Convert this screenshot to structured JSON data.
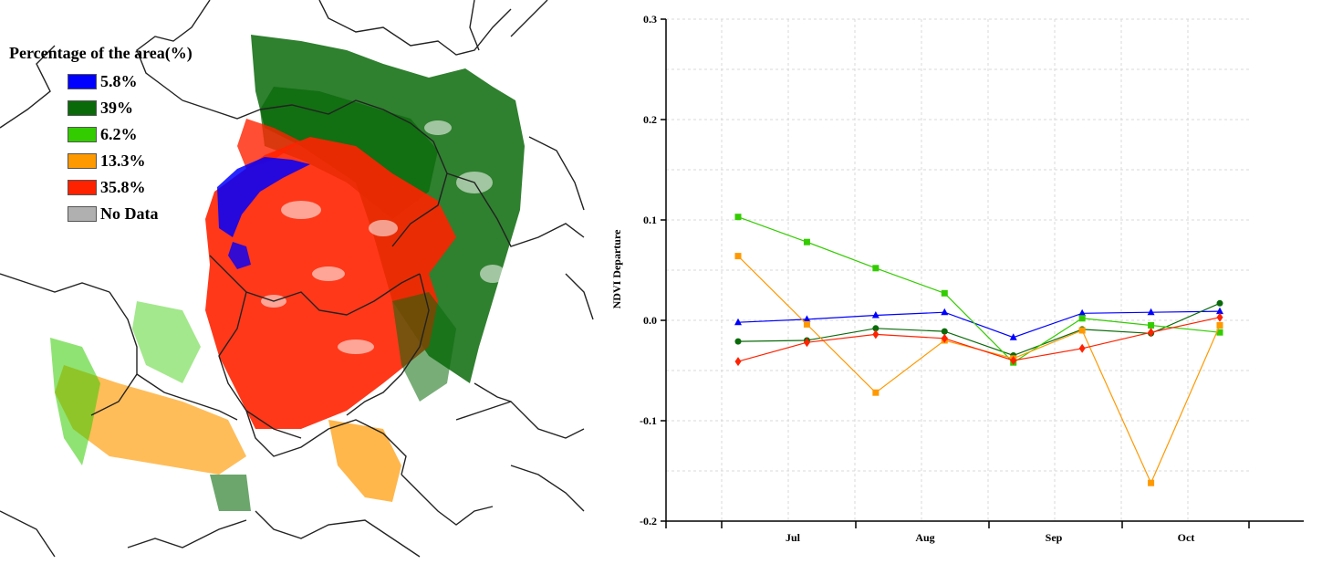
{
  "legend": {
    "title": "Percentage of the area(%)",
    "items": [
      {
        "label": "5.8%",
        "color": "#0000ff"
      },
      {
        "label": "39%",
        "color": "#0a6a0a"
      },
      {
        "label": "6.2%",
        "color": "#33cc00"
      },
      {
        "label": "13.3%",
        "color": "#ff9900"
      },
      {
        "label": "35.8%",
        "color": "#ff2200"
      },
      {
        "label": "No Data",
        "color": "#b0b0b0"
      }
    ]
  },
  "chart_data": {
    "type": "line",
    "title": "",
    "xlabel": "",
    "ylabel": "NDVI Departure",
    "ylim": [
      -0.2,
      0.3
    ],
    "yticks": [
      -0.2,
      -0.1,
      0.0,
      0.1,
      0.2,
      0.3
    ],
    "ytick_labels": [
      "-0.2",
      "-0.1",
      "0.0",
      "0.1",
      "0.2",
      "0.3"
    ],
    "xticks": [
      "Jul",
      "Aug",
      "Sep",
      "Oct"
    ],
    "grid": true,
    "series": [
      {
        "color": "#0000ff",
        "marker": "triangle",
        "values": [
          -0.002,
          0.001,
          0.005,
          0.008,
          -0.017,
          0.007,
          0.008,
          0.009
        ]
      },
      {
        "color": "#0a6a0a",
        "marker": "circle",
        "values": [
          -0.021,
          -0.02,
          -0.008,
          -0.011,
          -0.035,
          -0.009,
          -0.013,
          0.017
        ]
      },
      {
        "color": "#33cc00",
        "marker": "square",
        "values": [
          0.103,
          0.078,
          0.052,
          0.027,
          -0.042,
          0.002,
          -0.005,
          -0.012
        ]
      },
      {
        "color": "#ff9900",
        "marker": "square",
        "values": [
          0.064,
          -0.004,
          -0.072,
          -0.02,
          -0.038,
          -0.01,
          -0.162,
          -0.005
        ]
      },
      {
        "color": "#ff2200",
        "marker": "diamond",
        "values": [
          -0.041,
          -0.022,
          -0.014,
          -0.018,
          -0.04,
          -0.028,
          -0.012,
          0.003
        ]
      }
    ]
  }
}
